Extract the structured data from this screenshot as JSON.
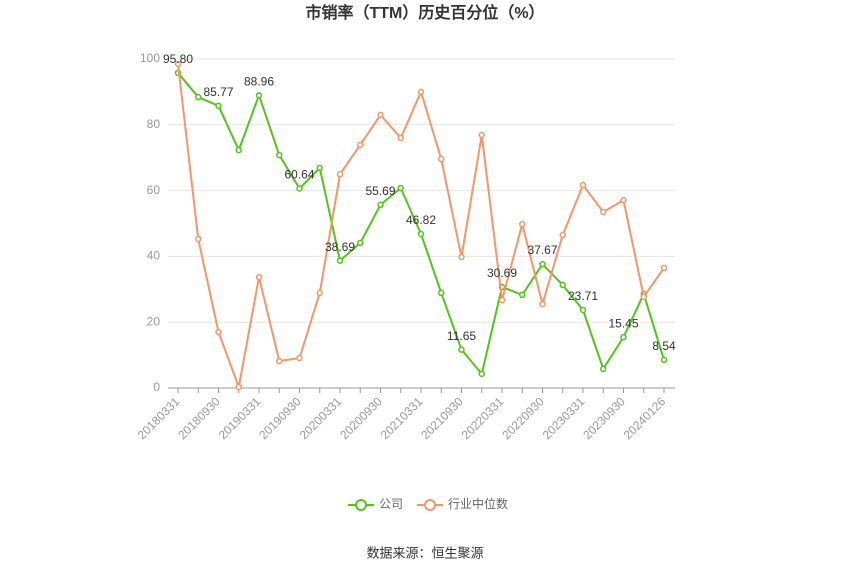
{
  "chart_data": {
    "type": "line",
    "title": "市销率（TTM）历史百分位（%）",
    "source": "数据来源：恒生聚源",
    "categories": [
      "20180331",
      null,
      "20180930",
      null,
      "20190331",
      null,
      "20190930",
      null,
      "20200331",
      null,
      "20200930",
      null,
      "20210331",
      null,
      "20210930",
      null,
      "20220331",
      null,
      "20220930",
      null,
      "20230331",
      null,
      "20230930",
      null,
      "20240126"
    ],
    "series": [
      {
        "name": "公司",
        "color": "#52c41a",
        "values": [
          95.8,
          88.4,
          85.77,
          72.3,
          88.96,
          70.8,
          60.64,
          66.9,
          38.69,
          44.1,
          55.69,
          60.8,
          46.82,
          28.9,
          11.65,
          4.3,
          30.69,
          28.3,
          37.67,
          31.3,
          23.71,
          5.8,
          15.45,
          28.6,
          8.54
        ],
        "value_labels": [
          "95.80",
          null,
          "85.77",
          null,
          "88.96",
          null,
          "60.64",
          null,
          "38.69",
          null,
          "55.69",
          null,
          "46.82",
          null,
          "11.65",
          null,
          "30.69",
          null,
          "37.67",
          null,
          "23.71",
          null,
          "15.45",
          null,
          "8.54"
        ]
      },
      {
        "name": "行业中位数",
        "color": "#f4956a",
        "values": [
          98.5,
          45.3,
          17.0,
          0.3,
          33.7,
          8.2,
          9.1,
          28.9,
          65.0,
          73.9,
          83.0,
          76.0,
          90.0,
          69.6,
          39.8,
          76.9,
          26.7,
          49.8,
          25.5,
          46.5,
          61.7,
          53.5,
          57.1,
          27.7,
          36.5
        ]
      }
    ],
    "ylim": [
      0,
      100
    ],
    "yticks": [
      0,
      20,
      40,
      60,
      80,
      100
    ],
    "grid": true
  }
}
